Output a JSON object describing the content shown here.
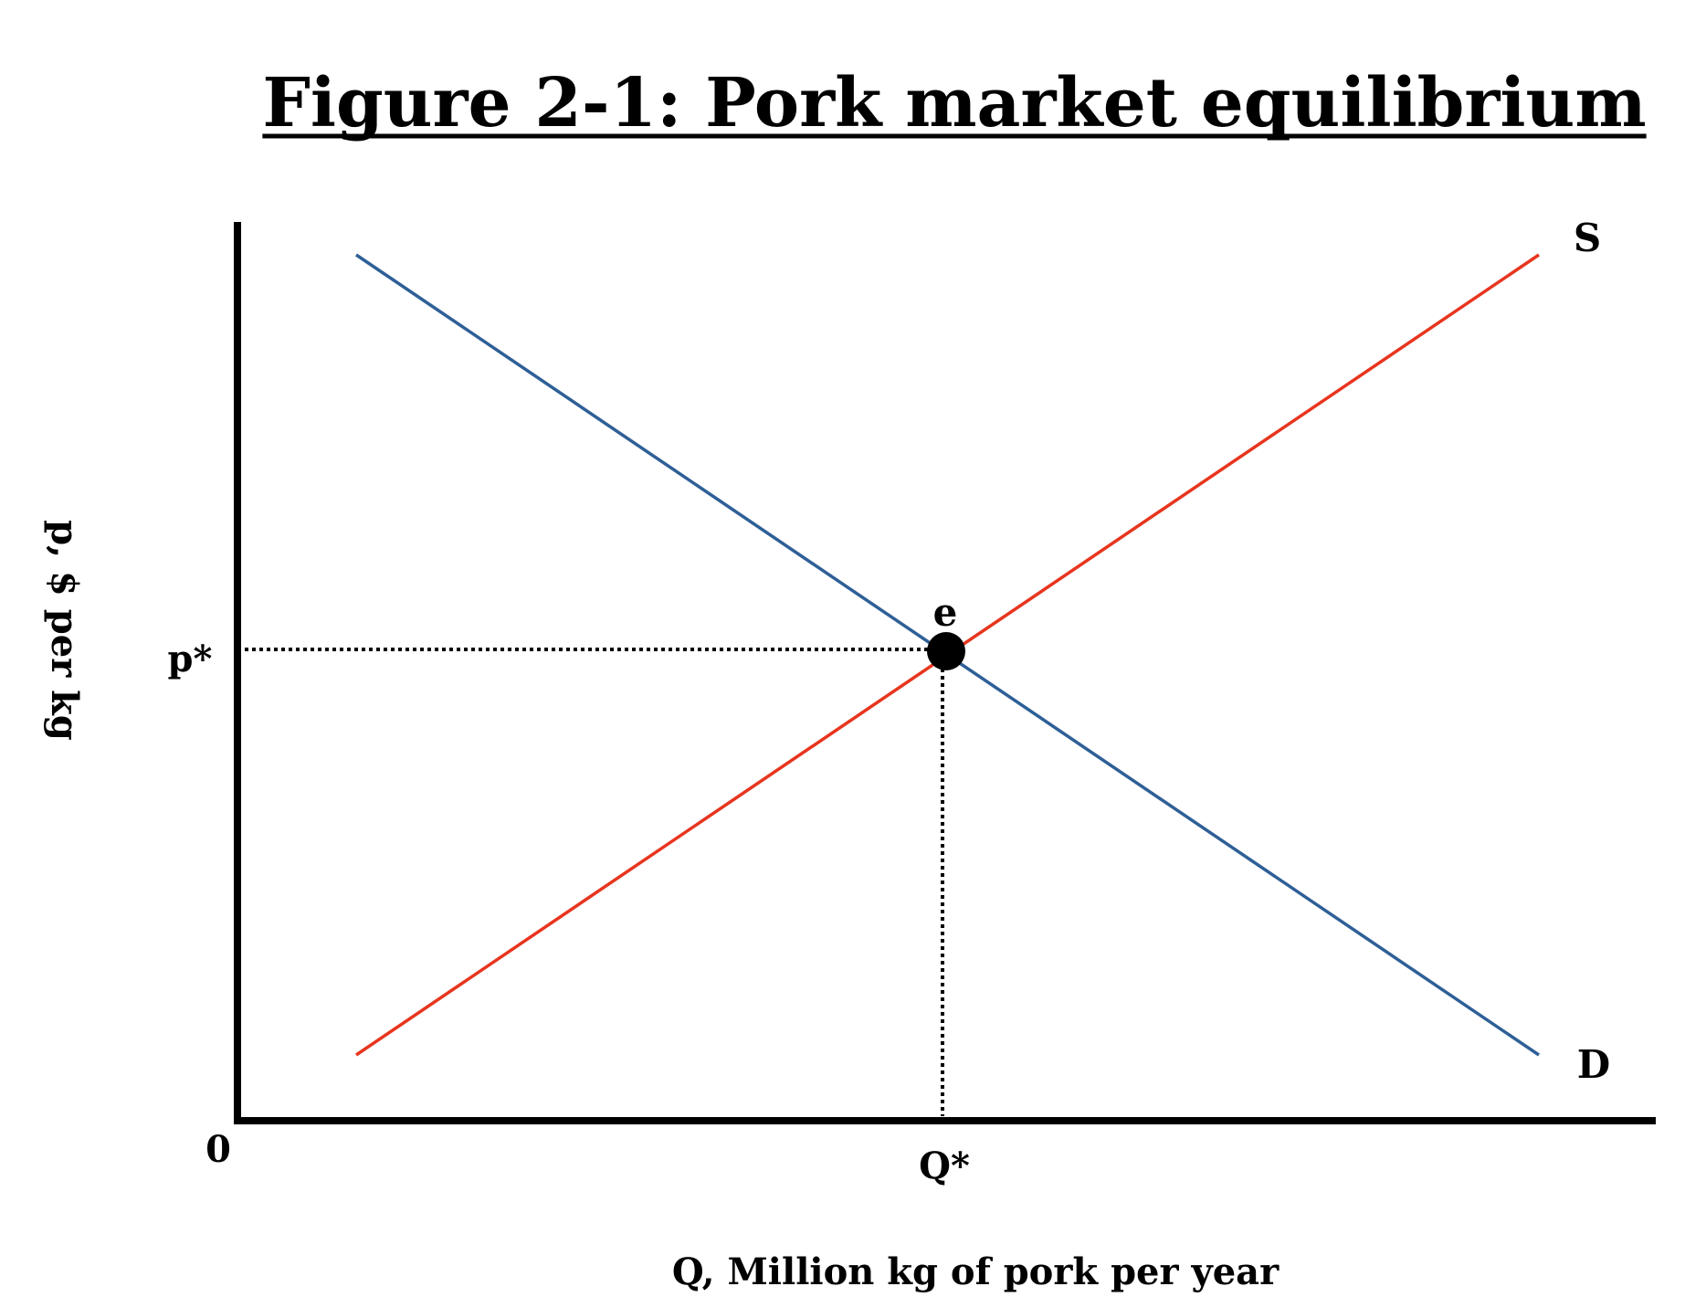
{
  "title": "Figure 2-1: Pork market equilibrium",
  "axes": {
    "ylabel": "p, $ per kg",
    "xlabel": "Q, Million kg of pork per year",
    "origin_label": "0"
  },
  "curves": {
    "supply": {
      "label": "S",
      "color": "#e8351e"
    },
    "demand": {
      "label": "D",
      "color": "#2e5f97"
    }
  },
  "equilibrium": {
    "point_label": "e",
    "price_label": "p*",
    "quantity_label": "Q*"
  },
  "colors": {
    "axis": "#000000",
    "guide": "#000000",
    "point": "#000000"
  }
}
